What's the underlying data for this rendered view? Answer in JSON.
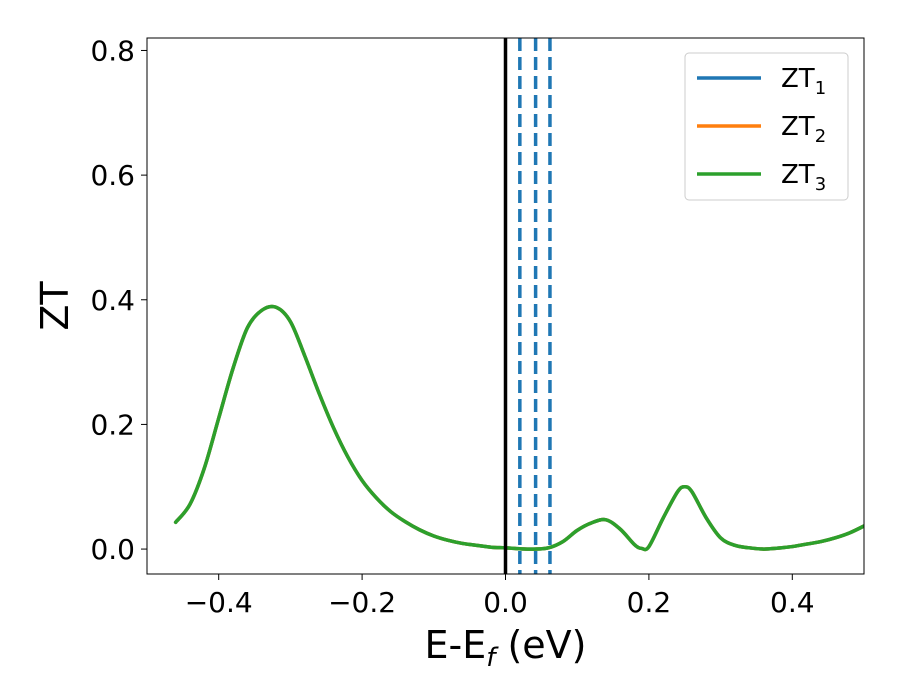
{
  "chart_data": {
    "type": "line",
    "title": "",
    "xlabel": {
      "main": "E-E",
      "sub": "f",
      "suffix": " (eV)"
    },
    "ylabel": "ZT",
    "xlim": [
      -0.5,
      0.5
    ],
    "ylim": [
      -0.04,
      0.82
    ],
    "x_ticks": [
      -0.4,
      -0.2,
      0.0,
      0.2,
      0.4
    ],
    "x_tick_labels": [
      "−0.4",
      "−0.2",
      "0.0",
      "0.2",
      "0.4"
    ],
    "y_ticks": [
      0.0,
      0.2,
      0.4,
      0.6,
      0.8
    ],
    "y_tick_labels": [
      "0.0",
      "0.2",
      "0.4",
      "0.6",
      "0.8"
    ],
    "grid": false,
    "legend_position": "top-right",
    "vertical_lines": [
      {
        "x": 0.0,
        "color": "#000000",
        "style": "solid"
      },
      {
        "x": 0.02,
        "color": "#1f77b4",
        "style": "dashed"
      },
      {
        "x": 0.042,
        "color": "#1f77b4",
        "style": "dashed"
      },
      {
        "x": 0.062,
        "color": "#1f77b4",
        "style": "dashed"
      }
    ],
    "series": [
      {
        "name": "ZT",
        "sub": "1",
        "color": "#1f77b4",
        "x": [
          -0.46,
          -0.44,
          -0.42,
          -0.4,
          -0.38,
          -0.36,
          -0.34,
          -0.32,
          -0.3,
          -0.28,
          -0.26,
          -0.24,
          -0.22,
          -0.2,
          -0.18,
          -0.16,
          -0.14,
          -0.12,
          -0.1,
          -0.08,
          -0.06,
          -0.04,
          -0.02,
          0.0,
          0.02,
          0.04,
          0.06,
          0.08,
          0.1,
          0.12,
          0.14,
          0.16,
          0.18,
          0.19,
          0.2,
          0.22,
          0.24,
          0.25,
          0.26,
          0.28,
          0.3,
          0.32,
          0.34,
          0.36,
          0.38,
          0.4,
          0.42,
          0.44,
          0.46,
          0.48,
          0.5
        ],
        "y": [
          0.043,
          0.072,
          0.13,
          0.21,
          0.29,
          0.355,
          0.383,
          0.388,
          0.365,
          0.31,
          0.25,
          0.195,
          0.148,
          0.11,
          0.082,
          0.06,
          0.044,
          0.031,
          0.021,
          0.014,
          0.009,
          0.006,
          0.003,
          0.002,
          0.0005,
          0.0,
          0.002,
          0.012,
          0.03,
          0.042,
          0.047,
          0.032,
          0.007,
          0.001,
          0.004,
          0.05,
          0.092,
          0.1,
          0.092,
          0.05,
          0.018,
          0.006,
          0.002,
          0.0,
          0.0015,
          0.004,
          0.008,
          0.012,
          0.018,
          0.026,
          0.037
        ]
      },
      {
        "name": "ZT",
        "sub": "2",
        "color": "#ff7f0e",
        "x": [
          -0.46,
          -0.44,
          -0.42,
          -0.4,
          -0.38,
          -0.36,
          -0.34,
          -0.32,
          -0.3,
          -0.28,
          -0.26,
          -0.24,
          -0.22,
          -0.2,
          -0.18,
          -0.16,
          -0.14,
          -0.12,
          -0.1,
          -0.08,
          -0.06,
          -0.04,
          -0.02,
          0.0,
          0.02,
          0.04,
          0.06,
          0.08,
          0.1,
          0.12,
          0.14,
          0.16,
          0.18,
          0.19,
          0.2,
          0.22,
          0.24,
          0.25,
          0.26,
          0.28,
          0.3,
          0.32,
          0.34,
          0.36,
          0.38,
          0.4,
          0.42,
          0.44,
          0.46,
          0.48,
          0.5
        ],
        "y": [
          0.043,
          0.072,
          0.13,
          0.21,
          0.29,
          0.355,
          0.383,
          0.388,
          0.365,
          0.31,
          0.25,
          0.195,
          0.148,
          0.11,
          0.082,
          0.06,
          0.044,
          0.031,
          0.021,
          0.014,
          0.009,
          0.006,
          0.003,
          0.002,
          0.0005,
          0.0,
          0.002,
          0.012,
          0.03,
          0.042,
          0.047,
          0.032,
          0.007,
          0.001,
          0.004,
          0.05,
          0.092,
          0.1,
          0.092,
          0.05,
          0.018,
          0.006,
          0.002,
          0.0,
          0.0015,
          0.004,
          0.008,
          0.012,
          0.018,
          0.026,
          0.037
        ]
      },
      {
        "name": "ZT",
        "sub": "3",
        "color": "#2ca02c",
        "x": [
          -0.46,
          -0.44,
          -0.42,
          -0.4,
          -0.38,
          -0.36,
          -0.34,
          -0.32,
          -0.3,
          -0.28,
          -0.26,
          -0.24,
          -0.22,
          -0.2,
          -0.18,
          -0.16,
          -0.14,
          -0.12,
          -0.1,
          -0.08,
          -0.06,
          -0.04,
          -0.02,
          0.0,
          0.02,
          0.04,
          0.06,
          0.08,
          0.1,
          0.12,
          0.14,
          0.16,
          0.18,
          0.19,
          0.2,
          0.22,
          0.24,
          0.25,
          0.26,
          0.28,
          0.3,
          0.32,
          0.34,
          0.36,
          0.38,
          0.4,
          0.42,
          0.44,
          0.46,
          0.48,
          0.5
        ],
        "y": [
          0.043,
          0.072,
          0.13,
          0.21,
          0.29,
          0.355,
          0.383,
          0.388,
          0.365,
          0.31,
          0.25,
          0.195,
          0.148,
          0.11,
          0.082,
          0.06,
          0.044,
          0.031,
          0.021,
          0.014,
          0.009,
          0.006,
          0.003,
          0.002,
          0.0005,
          0.0,
          0.002,
          0.012,
          0.03,
          0.042,
          0.047,
          0.032,
          0.007,
          0.001,
          0.004,
          0.05,
          0.092,
          0.1,
          0.092,
          0.05,
          0.018,
          0.006,
          0.002,
          0.0,
          0.0015,
          0.004,
          0.008,
          0.012,
          0.018,
          0.026,
          0.037
        ]
      }
    ]
  }
}
